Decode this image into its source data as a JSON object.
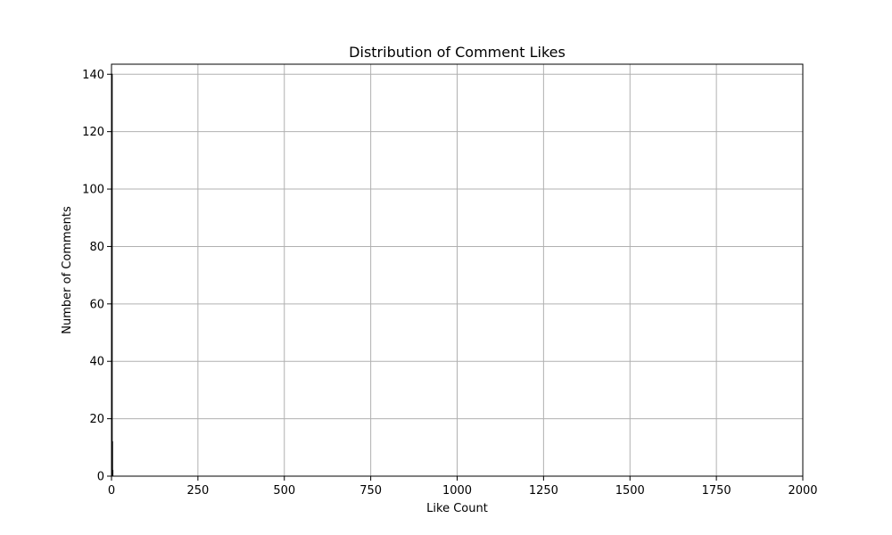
{
  "chart_data": {
    "type": "bar",
    "title": "Distribution of Comment Likes",
    "xlabel": "Like Count",
    "ylabel": "Number of Comments",
    "xlim": [
      0,
      2000
    ],
    "ylim": [
      0,
      143.5
    ],
    "x_ticks": [
      0,
      250,
      500,
      750,
      1000,
      1250,
      1500,
      1750,
      2000
    ],
    "y_ticks": [
      0,
      20,
      40,
      60,
      80,
      100,
      120,
      140
    ],
    "grid": true,
    "bar_color": "#1f77b4",
    "edge_color": "#000000",
    "bins": [
      {
        "x0": 0,
        "x1": 1,
        "count": 140
      },
      {
        "x0": 1,
        "x1": 2,
        "count": 12
      },
      {
        "x0": 2,
        "x1": 3,
        "count": 2
      }
    ]
  }
}
